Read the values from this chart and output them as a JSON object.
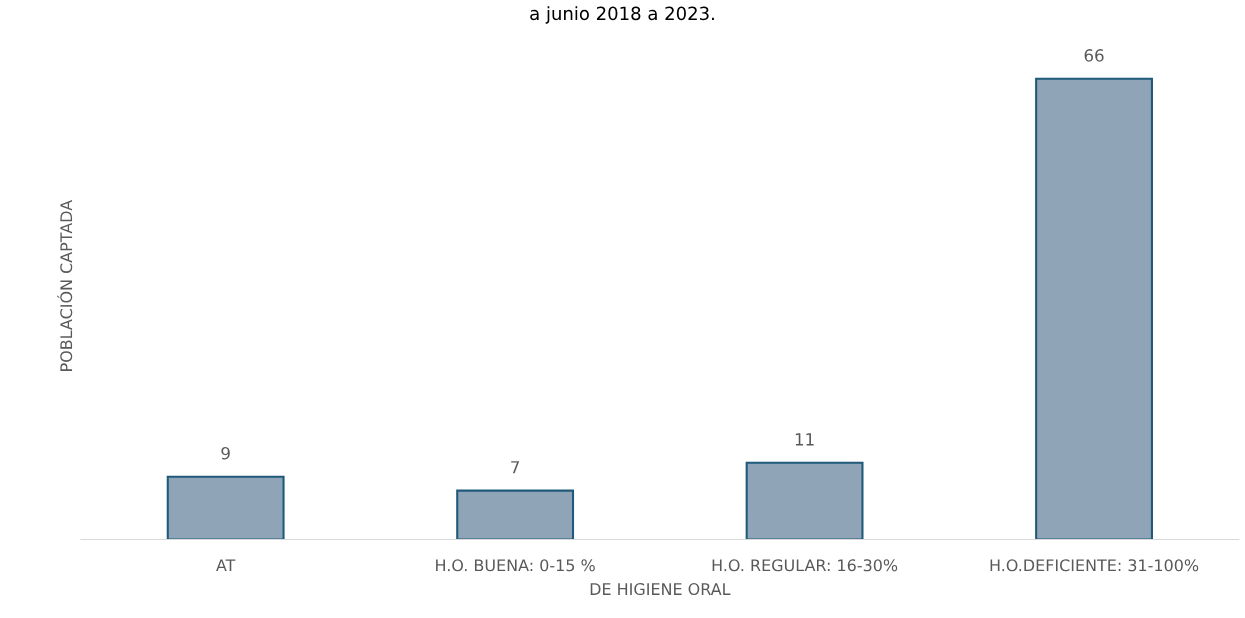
{
  "chart_data": {
    "type": "bar",
    "title": "a junio 2018 a 2023.",
    "xlabel": "DE HIGIENE ORAL",
    "ylabel": "POBLACIÓN CAPTADA",
    "categories": [
      "AT",
      "H.O. BUENA: 0-15 %",
      "H.O. REGULAR: 16-30%",
      "H.O.DEFICIENTE: 31-100%"
    ],
    "values": [
      9,
      7,
      11,
      66
    ],
    "color": "#8fa4b6",
    "data_labels": true,
    "grid": false,
    "legend": false
  }
}
